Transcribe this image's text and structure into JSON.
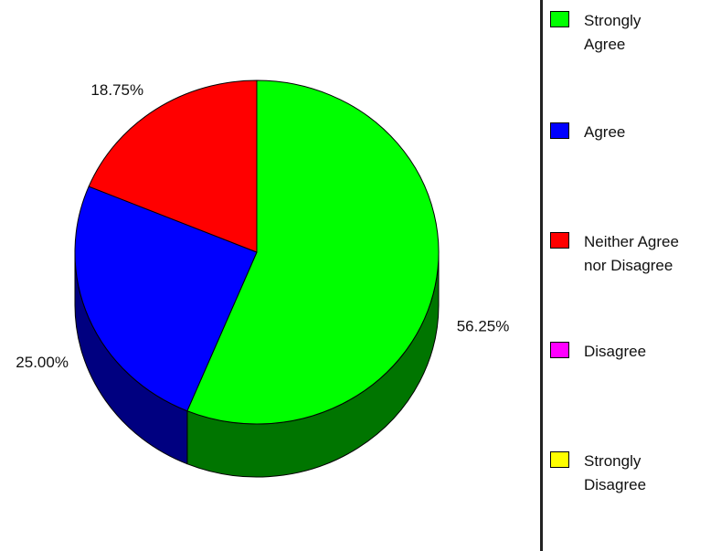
{
  "chart_data": {
    "type": "pie",
    "style": "3d",
    "slices": [
      {
        "label": "Strongly Agree",
        "value": 56.25,
        "value_label": "56.25%",
        "color": "#00ff00",
        "side_color": "#007500"
      },
      {
        "label": "Agree",
        "value": 25.0,
        "value_label": "25.00%",
        "color": "#0000ff",
        "side_color": "#000080"
      },
      {
        "label": "Neither Agree nor Disagree",
        "value": 18.75,
        "value_label": "18.75%",
        "color": "#ff0000",
        "side_color": "#800000"
      },
      {
        "label": "Disagree",
        "value": 0,
        "value_label": "",
        "color": "#ff00ff",
        "side_color": "#800080"
      },
      {
        "label": "Strongly Disagree",
        "value": 0,
        "value_label": "",
        "color": "#ffff00",
        "side_color": "#808000"
      }
    ],
    "legend": {
      "placement": "right",
      "items": [
        {
          "label": "Strongly\nAgree",
          "color": "#00ff00"
        },
        {
          "label": "Agree",
          "color": "#0000ff"
        },
        {
          "label": "Neither Agree\nnor Disagree",
          "color": "#ff0000"
        },
        {
          "label": "Disagree",
          "color": "#ff00ff"
        },
        {
          "label": "Strongly\nDisagree",
          "color": "#ffff00"
        }
      ]
    }
  }
}
